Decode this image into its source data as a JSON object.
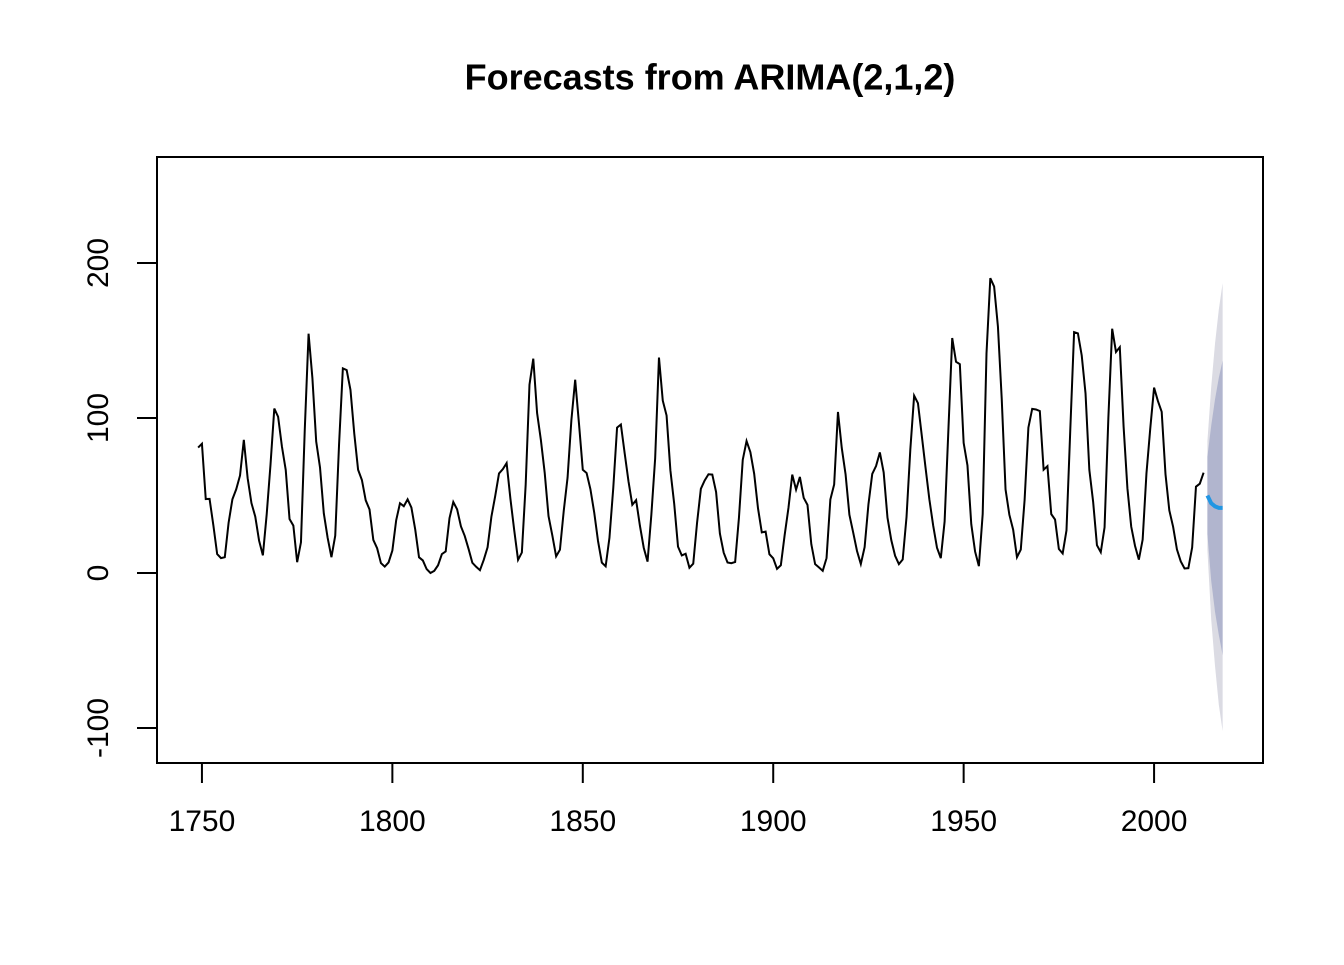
{
  "chart_data": {
    "type": "line",
    "title": "Forecasts from ARIMA(2,1,2)",
    "xlim": [
      1738.2,
      2028.6
    ],
    "xticks": [
      1750,
      1800,
      1850,
      1900,
      1950,
      2000
    ],
    "ylim": [
      -122.6,
      268.4
    ],
    "yticks": [
      -100,
      0,
      100,
      200
    ],
    "series": [
      {
        "color": "#000000",
        "x": [
          1749,
          1750,
          1751,
          1752,
          1753,
          1754,
          1755,
          1756,
          1757,
          1758,
          1759,
          1760,
          1761,
          1762,
          1763,
          1764,
          1765,
          1766,
          1767,
          1768,
          1769,
          1770,
          1771,
          1772,
          1773,
          1774,
          1775,
          1776,
          1777,
          1778,
          1779,
          1780,
          1781,
          1782,
          1783,
          1784,
          1785,
          1786,
          1787,
          1788,
          1789,
          1790,
          1791,
          1792,
          1793,
          1794,
          1795,
          1796,
          1797,
          1798,
          1799,
          1800,
          1801,
          1802,
          1803,
          1804,
          1805,
          1806,
          1807,
          1808,
          1809,
          1810,
          1811,
          1812,
          1813,
          1814,
          1815,
          1816,
          1817,
          1818,
          1819,
          1820,
          1821,
          1822,
          1823,
          1824,
          1825,
          1826,
          1827,
          1828,
          1829,
          1830,
          1831,
          1832,
          1833,
          1834,
          1835,
          1836,
          1837,
          1838,
          1839,
          1840,
          1841,
          1842,
          1843,
          1844,
          1845,
          1846,
          1847,
          1848,
          1849,
          1850,
          1851,
          1852,
          1853,
          1854,
          1855,
          1856,
          1857,
          1858,
          1859,
          1860,
          1861,
          1862,
          1863,
          1864,
          1865,
          1866,
          1867,
          1868,
          1869,
          1870,
          1871,
          1872,
          1873,
          1874,
          1875,
          1876,
          1877,
          1878,
          1879,
          1880,
          1881,
          1882,
          1883,
          1884,
          1885,
          1886,
          1887,
          1888,
          1889,
          1890,
          1891,
          1892,
          1893,
          1894,
          1895,
          1896,
          1897,
          1898,
          1899,
          1900,
          1901,
          1902,
          1903,
          1904,
          1905,
          1906,
          1907,
          1908,
          1909,
          1910,
          1911,
          1912,
          1913,
          1914,
          1915,
          1916,
          1917,
          1918,
          1919,
          1920,
          1921,
          1922,
          1923,
          1924,
          1925,
          1926,
          1927,
          1928,
          1929,
          1930,
          1931,
          1932,
          1933,
          1934,
          1935,
          1936,
          1937,
          1938,
          1939,
          1940,
          1941,
          1942,
          1943,
          1944,
          1945,
          1946,
          1947,
          1948,
          1949,
          1950,
          1951,
          1952,
          1953,
          1954,
          1955,
          1956,
          1957,
          1958,
          1959,
          1960,
          1961,
          1962,
          1963,
          1964,
          1965,
          1966,
          1967,
          1968,
          1969,
          1970,
          1971,
          1972,
          1973,
          1974,
          1975,
          1976,
          1977,
          1978,
          1979,
          1980,
          1981,
          1982,
          1983,
          1984,
          1985,
          1986,
          1987,
          1988,
          1989,
          1990,
          1991,
          1992,
          1993,
          1994,
          1995,
          1996,
          1997,
          1998,
          1999,
          2000,
          2001,
          2002,
          2003,
          2004,
          2005,
          2006,
          2007,
          2008,
          2009,
          2010,
          2011,
          2012,
          2013
        ],
        "values": [
          80.9,
          83.4,
          47.7,
          47.8,
          30.7,
          12.2,
          9.6,
          10.2,
          32.4,
          47.6,
          54.0,
          62.9,
          85.9,
          61.2,
          45.1,
          36.4,
          20.9,
          11.4,
          37.8,
          69.8,
          106.1,
          100.8,
          81.6,
          66.5,
          34.8,
          30.6,
          7.0,
          19.8,
          92.5,
          154.4,
          125.9,
          84.8,
          68.1,
          38.5,
          22.8,
          10.2,
          24.1,
          82.9,
          132.0,
          130.9,
          118.1,
          89.9,
          66.6,
          60.0,
          46.9,
          41.0,
          21.3,
          16.0,
          6.4,
          4.1,
          6.8,
          14.5,
          34.0,
          45.0,
          43.1,
          47.5,
          42.2,
          28.1,
          10.1,
          8.1,
          2.5,
          0.0,
          1.4,
          5.0,
          12.2,
          13.9,
          35.4,
          45.8,
          41.1,
          30.1,
          23.9,
          15.6,
          6.6,
          4.0,
          1.8,
          8.5,
          16.6,
          36.3,
          49.6,
          64.2,
          67.0,
          70.9,
          47.8,
          27.5,
          8.5,
          13.2,
          56.9,
          121.5,
          138.3,
          103.2,
          85.7,
          64.6,
          36.7,
          24.2,
          10.7,
          15.0,
          40.1,
          61.5,
          98.5,
          124.7,
          96.3,
          66.6,
          64.5,
          54.1,
          39.0,
          20.6,
          6.7,
          4.3,
          22.7,
          54.8,
          93.8,
          95.8,
          77.2,
          59.1,
          44.0,
          47.0,
          30.5,
          16.3,
          7.3,
          37.6,
          74.0,
          139.0,
          111.2,
          101.6,
          66.2,
          44.7,
          17.0,
          11.3,
          12.4,
          3.4,
          6.0,
          32.3,
          54.3,
          59.7,
          63.7,
          63.5,
          52.2,
          25.4,
          13.1,
          6.8,
          6.3,
          7.1,
          35.6,
          73.0,
          85.1,
          78.0,
          64.0,
          41.8,
          26.2,
          26.7,
          12.1,
          9.5,
          2.7,
          5.0,
          24.4,
          42.0,
          63.5,
          53.8,
          62.0,
          48.5,
          43.9,
          18.6,
          5.7,
          3.6,
          1.4,
          9.6,
          47.4,
          57.1,
          103.9,
          80.6,
          63.6,
          37.6,
          26.1,
          14.2,
          5.8,
          16.7,
          44.3,
          63.9,
          69.0,
          77.8,
          64.9,
          35.7,
          21.2,
          11.1,
          5.7,
          8.7,
          36.1,
          79.7,
          114.4,
          109.6,
          88.8,
          67.8,
          47.5,
          30.6,
          16.3,
          9.6,
          33.2,
          92.6,
          151.6,
          136.3,
          134.7,
          83.9,
          69.4,
          31.5,
          13.9,
          4.4,
          38.0,
          141.7,
          190.2,
          184.8,
          159.0,
          112.3,
          53.9,
          37.6,
          27.9,
          10.2,
          15.1,
          47.0,
          93.8,
          105.9,
          105.5,
          104.5,
          66.6,
          68.9,
          38.0,
          34.5,
          15.5,
          12.6,
          27.5,
          92.5,
          155.4,
          154.6,
          140.4,
          115.9,
          66.6,
          45.9,
          17.9,
          13.4,
          29.4,
          100.2,
          157.6,
          142.6,
          145.7,
          94.3,
          54.6,
          29.9,
          17.5,
          8.6,
          21.5,
          64.3,
          93.3,
          119.6,
          111.0,
          104.0,
          63.7,
          40.4,
          29.8,
          15.2,
          7.5,
          2.9,
          3.1,
          16.5,
          55.7,
          57.6,
          64.7
        ]
      }
    ],
    "forecast": {
      "x": [
        2014,
        2015,
        2016,
        2017,
        2018
      ],
      "mean": [
        50,
        45,
        43,
        42,
        42
      ],
      "color": "#2196e3",
      "lower80": [
        25,
        -5,
        -25,
        -40,
        -53
      ],
      "upper80": [
        75,
        95,
        112,
        126,
        137
      ],
      "color80": "#b1b5ce",
      "lower95": [
        15,
        -30,
        -60,
        -85,
        -102
      ],
      "upper95": [
        85,
        120,
        148,
        170,
        187
      ],
      "color95": "#dbdbe3"
    }
  }
}
